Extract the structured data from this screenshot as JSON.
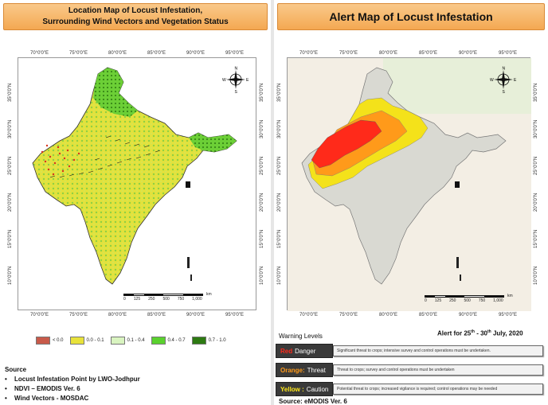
{
  "left": {
    "title_line1": "Location Map of Locust Infestation,",
    "title_line2": "Surrounding Wind Vectors and Vegetation Status",
    "lon_ticks": [
      "70°0'0\"E",
      "75°0'0\"E",
      "80°0'0\"E",
      "85°0'0\"E",
      "90°0'0\"E",
      "95°0'0\"E"
    ],
    "lat_ticks": [
      "35°0'0\"N",
      "30°0'0\"N",
      "25°0'0\"N",
      "20°0'0\"N",
      "15°0'0\"N",
      "10°0'0\"N"
    ],
    "scale_labels": [
      "0",
      "125",
      "250",
      "500",
      "750",
      "1,000"
    ],
    "scale_unit": "km",
    "legend": [
      {
        "label": "< 0.0",
        "color": "#c85a4a"
      },
      {
        "label": "0.0 - 0.1",
        "color": "#e8e23a"
      },
      {
        "label": "0.1 - 0.4",
        "color": "#d9f4c0"
      },
      {
        "label": "0.4 - 0.7",
        "color": "#5ad12e"
      },
      {
        "label": "0.7 - 1.0",
        "color": "#2d7a12"
      }
    ],
    "source_heading": "Source",
    "sources": [
      "Locust Infestation Point by LWO-Jodhpur",
      "NDVI – EMODIS Ver. 6",
      "Wind Vectors - MOSDAC"
    ]
  },
  "right": {
    "title": "Alert Map  of Locust Infestation",
    "lon_ticks": [
      "70°0'0\"E",
      "75°0'0\"E",
      "80°0'0\"E",
      "85°0'0\"E",
      "90°0'0\"E",
      "95°0'0\"E"
    ],
    "lat_ticks": [
      "35°0'0\"N",
      "30°0'0\"N",
      "25°0'0\"N",
      "20°0'0\"N",
      "15°0'0\"N",
      "10°0'0\"N"
    ],
    "scale_labels": [
      "0",
      "125",
      "250",
      "500",
      "750",
      "1,000"
    ],
    "scale_unit": "km",
    "warning_title": "Warning Levels",
    "alert_date_pre": "Alert for 25",
    "alert_date_sup1": "th",
    "alert_date_mid": " - 30",
    "alert_date_sup2": "th",
    "alert_date_post": " July, 2020",
    "levels": [
      {
        "name": "Red",
        "level": "Danger",
        "color": "#ff2a1a",
        "desc": "Significant threat to crops; intensive survey and control operations must be undertaken."
      },
      {
        "name": "Orange:",
        "level": "Threat",
        "color": "#ff9a1a",
        "desc": "Threat to crops; survey and control operations must be undertaken"
      },
      {
        "name": "Yellow :",
        "level": "Caution",
        "color": "#ffe81a",
        "desc": "Potential threat to crops; increased vigilance is required; control operations may be needed"
      }
    ],
    "source": "Source: eMODIS Ver. 6"
  },
  "compass": {
    "n": "N",
    "s": "S",
    "e": "E",
    "w": "W"
  }
}
